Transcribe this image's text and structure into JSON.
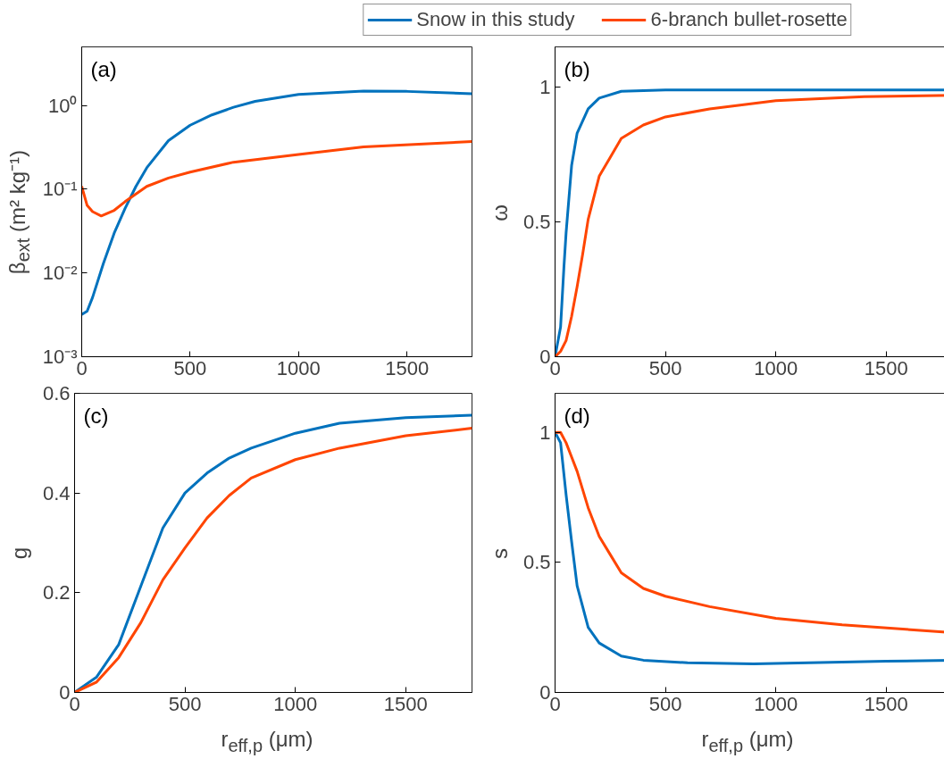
{
  "chart_data": [
    {
      "type": "line",
      "ylabel": "β$_{ext}$ (m² kg⁻¹)",
      "annotations": [
        "(a)"
      ],
      "log": true,
      "legend": "top",
      "xlim": [
        0,
        1800
      ],
      "xticks": [
        0,
        500,
        1000,
        1500
      ],
      "ylim": [
        0.001,
        5
      ],
      "yticks": [
        {
          "value": 0.001,
          "label": "10⁻³"
        },
        {
          "value": 0.01,
          "label": "10⁻²"
        },
        {
          "value": 0.1,
          "label": "10⁻¹"
        },
        {
          "value": 1,
          "label": "10⁰"
        }
      ],
      "series": [
        {
          "name": "Snow in this study",
          "color": "#0072bd",
          "x": [
            0,
            25,
            50,
            100,
            150,
            200,
            250,
            300,
            400,
            500,
            600,
            700,
            800,
            1000,
            1300,
            1500,
            1800
          ],
          "values": [
            0.0032,
            0.0035,
            0.0051,
            0.013,
            0.03,
            0.059,
            0.108,
            0.18,
            0.38,
            0.58,
            0.77,
            0.95,
            1.12,
            1.35,
            1.48,
            1.47,
            1.38
          ]
        },
        {
          "name": "6-branch bullet-rosette",
          "color": "#ff4500",
          "x": [
            0,
            25,
            50,
            90,
            150,
            200,
            300,
            400,
            500,
            700,
            1000,
            1300,
            1800
          ],
          "values": [
            0.108,
            0.064,
            0.054,
            0.048,
            0.056,
            0.071,
            0.108,
            0.136,
            0.16,
            0.21,
            0.26,
            0.32,
            0.37
          ]
        }
      ]
    },
    {
      "type": "line",
      "ylabel": "ω",
      "annotations": [
        "(b)"
      ],
      "xlim": [
        0,
        1800
      ],
      "xticks": [
        0,
        500,
        1000,
        1500
      ],
      "ylim": [
        0,
        1.15
      ],
      "yticks": [
        0,
        0.5,
        1
      ],
      "series": [
        {
          "color": "#0072bd",
          "x": [
            0,
            25,
            40,
            50,
            75,
            100,
            150,
            200,
            300,
            500,
            1800
          ],
          "values": [
            0,
            0.11,
            0.33,
            0.46,
            0.71,
            0.83,
            0.92,
            0.96,
            0.985,
            0.99,
            0.99
          ]
        },
        {
          "color": "#ff4500",
          "x": [
            0,
            25,
            50,
            75,
            100,
            125,
            150,
            200,
            250,
            300,
            400,
            500,
            700,
            1000,
            1400,
            1800
          ],
          "values": [
            0,
            0.02,
            0.06,
            0.15,
            0.26,
            0.38,
            0.51,
            0.67,
            0.74,
            0.81,
            0.86,
            0.89,
            0.92,
            0.95,
            0.965,
            0.97
          ]
        }
      ]
    },
    {
      "type": "line",
      "ylabel": "g",
      "xlabel": "r$_{eff,p}$ (μm)",
      "annotations": [
        "(c)"
      ],
      "xlim": [
        0,
        1800
      ],
      "xticks": [
        0,
        500,
        1000,
        1500
      ],
      "ylim": [
        0,
        0.6
      ],
      "yticks": [
        0,
        0.2,
        0.4,
        0.6
      ],
      "series": [
        {
          "color": "#0072bd",
          "x": [
            0,
            100,
            200,
            300,
            400,
            500,
            600,
            700,
            800,
            1000,
            1200,
            1500,
            1800
          ],
          "values": [
            0,
            0.031,
            0.096,
            0.213,
            0.33,
            0.4,
            0.44,
            0.47,
            0.49,
            0.52,
            0.54,
            0.551,
            0.556
          ]
        },
        {
          "color": "#ff4500",
          "x": [
            0,
            100,
            200,
            300,
            400,
            500,
            600,
            700,
            800,
            1000,
            1200,
            1500,
            1800
          ],
          "values": [
            0,
            0.021,
            0.07,
            0.14,
            0.226,
            0.29,
            0.35,
            0.395,
            0.43,
            0.467,
            0.49,
            0.515,
            0.53
          ]
        }
      ]
    },
    {
      "type": "line",
      "ylabel": "s",
      "xlabel": "r$_{eff,p}$ (μm)",
      "annotations": [
        "(d)"
      ],
      "xlim": [
        0,
        1800
      ],
      "xticks": [
        0,
        500,
        1000,
        1500
      ],
      "ylim": [
        0,
        1.15
      ],
      "yticks": [
        0,
        0.5,
        1
      ],
      "series": [
        {
          "color": "#0072bd",
          "x": [
            0,
            25,
            50,
            75,
            100,
            150,
            200,
            300,
            400,
            600,
            900,
            1200,
            1500,
            1800
          ],
          "values": [
            1,
            0.96,
            0.76,
            0.58,
            0.41,
            0.25,
            0.19,
            0.14,
            0.124,
            0.114,
            0.11,
            0.115,
            0.12,
            0.124
          ]
        },
        {
          "color": "#ff4500",
          "x": [
            0,
            25,
            50,
            100,
            150,
            200,
            250,
            300,
            400,
            500,
            700,
            1000,
            1300,
            1800
          ],
          "values": [
            1,
            1,
            0.96,
            0.85,
            0.71,
            0.6,
            0.53,
            0.46,
            0.4,
            0.37,
            0.33,
            0.285,
            0.26,
            0.23
          ]
        }
      ]
    }
  ]
}
